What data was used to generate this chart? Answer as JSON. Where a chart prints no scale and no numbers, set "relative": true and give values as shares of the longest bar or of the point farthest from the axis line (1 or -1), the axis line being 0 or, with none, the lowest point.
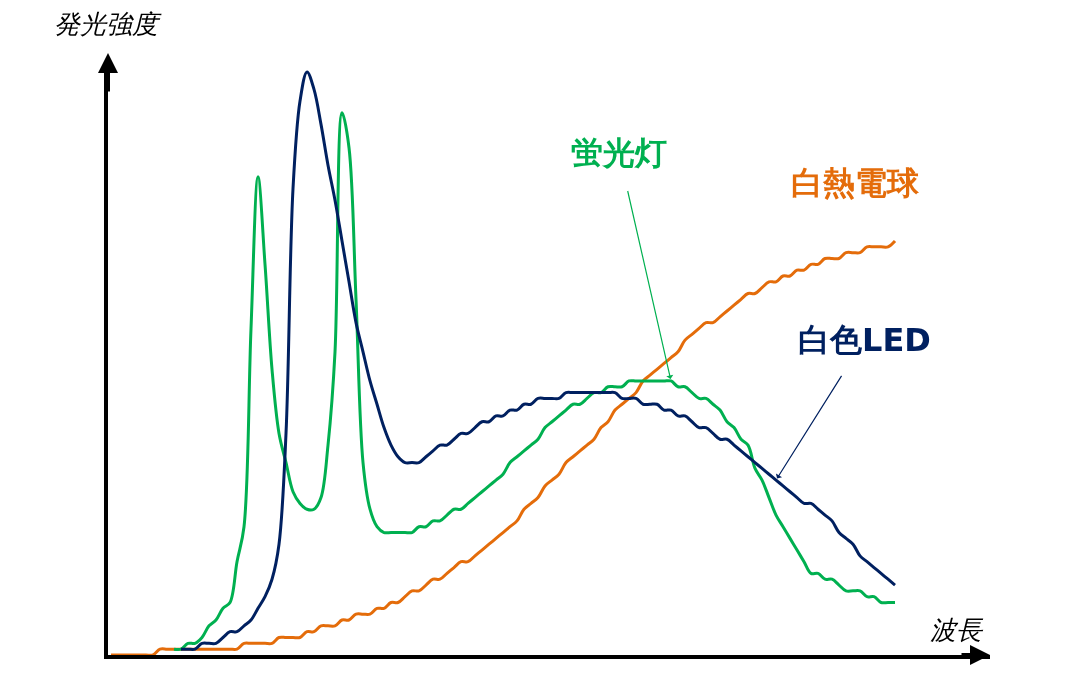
{
  "chart_data": {
    "type": "line",
    "relative": true,
    "xlabel": "波長",
    "ylabel": "発光強度",
    "legend": false,
    "marker": "none",
    "line_style": "solid",
    "categories": [
      null,
      null,
      null,
      null,
      null,
      null,
      null,
      null,
      null,
      null,
      null,
      null,
      null,
      null,
      null,
      null,
      null,
      null,
      null,
      null,
      null,
      null,
      null,
      null,
      null,
      null,
      null,
      null,
      null,
      null,
      null,
      null,
      null,
      null,
      null,
      null,
      null,
      null,
      null,
      null,
      null,
      null,
      null,
      null,
      null,
      null,
      null,
      null,
      null,
      null,
      null,
      null,
      null,
      null,
      null,
      null,
      null,
      null,
      null,
      null,
      null,
      null,
      null,
      null,
      null,
      null,
      null,
      null,
      null,
      null,
      null,
      null,
      null,
      null,
      null,
      null,
      null,
      null,
      null,
      null,
      null,
      null,
      null,
      null,
      null,
      null,
      null,
      null,
      null,
      null,
      null,
      null,
      null,
      null,
      null,
      null,
      null,
      null,
      null,
      null,
      null,
      null,
      null,
      null,
      null,
      null,
      null,
      null,
      null,
      null,
      null,
      null,
      null
    ],
    "series": [
      {
        "name": "白熱電球",
        "color": "#e46c0a",
        "values": [
          0,
          0,
          0,
          0,
          0,
          0,
          0,
          0.01,
          0.01,
          0.01,
          0.01,
          0.01,
          0.01,
          0.01,
          0.01,
          0.01,
          0.01,
          0.01,
          0.01,
          0.02,
          0.02,
          0.02,
          0.02,
          0.02,
          0.03,
          0.03,
          0.03,
          0.03,
          0.04,
          0.04,
          0.05,
          0.05,
          0.05,
          0.06,
          0.06,
          0.07,
          0.07,
          0.07,
          0.08,
          0.08,
          0.09,
          0.09,
          0.1,
          0.11,
          0.11,
          0.12,
          0.13,
          0.13,
          0.14,
          0.15,
          0.16,
          0.16,
          0.17,
          0.18,
          0.19,
          0.2,
          0.21,
          0.22,
          0.23,
          0.25,
          0.26,
          0.27,
          0.29,
          0.3,
          0.31,
          0.33,
          0.34,
          0.35,
          0.36,
          0.37,
          0.39,
          0.4,
          0.42,
          0.43,
          0.44,
          0.45,
          0.47,
          0.48,
          0.49,
          0.5,
          0.51,
          0.52,
          0.54,
          0.55,
          0.56,
          0.57,
          0.57,
          0.58,
          0.59,
          0.6,
          0.61,
          0.62,
          0.62,
          0.63,
          0.64,
          0.64,
          0.65,
          0.65,
          0.66,
          0.66,
          0.67,
          0.67,
          0.68,
          0.68,
          0.68,
          0.69,
          0.69,
          0.69,
          0.7,
          0.7,
          0.7,
          0.7,
          0.71
        ]
      },
      {
        "name": "蛍光灯",
        "color": "#00b050",
        "values": [
          null,
          null,
          null,
          null,
          null,
          null,
          null,
          null,
          null,
          0.01,
          0.01,
          0.02,
          0.02,
          0.03,
          0.05,
          0.06,
          0.08,
          0.09,
          0.16,
          0.22,
          0.56,
          0.82,
          0.67,
          0.49,
          0.38,
          0.33,
          0.28,
          0.26,
          0.25,
          0.25,
          0.27,
          0.36,
          0.52,
          0.93,
          0.87,
          0.61,
          0.33,
          0.25,
          0.22,
          0.21,
          0.21,
          0.21,
          0.21,
          0.21,
          0.22,
          0.22,
          0.23,
          0.23,
          0.24,
          0.25,
          0.25,
          0.26,
          0.27,
          0.28,
          0.29,
          0.3,
          0.31,
          0.33,
          0.34,
          0.35,
          0.36,
          0.37,
          0.39,
          0.4,
          0.41,
          0.42,
          0.43,
          0.43,
          0.44,
          0.45,
          0.45,
          0.46,
          0.46,
          0.46,
          0.47,
          0.47,
          0.47,
          0.47,
          0.47,
          0.47,
          0.47,
          0.46,
          0.46,
          0.45,
          0.44,
          0.44,
          0.43,
          0.42,
          0.4,
          0.39,
          0.37,
          0.36,
          0.32,
          0.3,
          0.27,
          0.24,
          0.22,
          0.2,
          0.18,
          0.16,
          0.14,
          0.14,
          0.13,
          0.13,
          0.12,
          0.11,
          0.11,
          0.11,
          0.1,
          0.1,
          0.09,
          0.09,
          0.09
        ]
      },
      {
        "name": "白色LED",
        "color": "#002060",
        "values": [
          null,
          null,
          null,
          null,
          null,
          null,
          null,
          null,
          null,
          null,
          0.01,
          0.01,
          0.01,
          0.02,
          0.02,
          0.02,
          0.03,
          0.04,
          0.04,
          0.05,
          0.06,
          0.08,
          0.1,
          0.13,
          0.19,
          0.38,
          0.8,
          0.95,
          1.0,
          0.97,
          0.91,
          0.84,
          0.78,
          0.71,
          0.64,
          0.57,
          0.52,
          0.47,
          0.43,
          0.39,
          0.36,
          0.34,
          0.33,
          0.33,
          0.33,
          0.34,
          0.35,
          0.36,
          0.36,
          0.37,
          0.38,
          0.38,
          0.39,
          0.4,
          0.4,
          0.41,
          0.41,
          0.42,
          0.42,
          0.43,
          0.43,
          0.44,
          0.44,
          0.44,
          0.44,
          0.45,
          0.45,
          0.45,
          0.45,
          0.45,
          0.45,
          0.45,
          0.45,
          0.44,
          0.44,
          0.44,
          0.43,
          0.43,
          0.43,
          0.42,
          0.42,
          0.41,
          0.41,
          0.4,
          0.39,
          0.39,
          0.38,
          0.37,
          0.37,
          0.36,
          0.35,
          0.34,
          0.33,
          0.32,
          0.31,
          0.3,
          0.29,
          0.28,
          0.27,
          0.26,
          0.26,
          0.25,
          0.24,
          0.23,
          0.21,
          0.2,
          0.19,
          0.17,
          0.16,
          0.15,
          0.14,
          0.13,
          0.12
        ]
      }
    ]
  }
}
